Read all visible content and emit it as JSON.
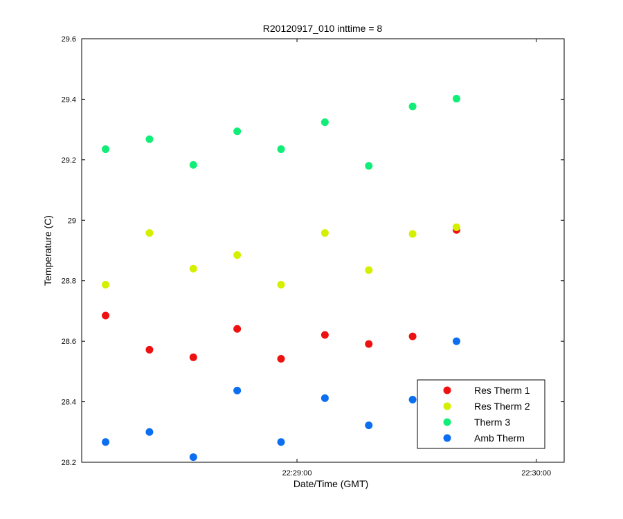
{
  "chart_data": {
    "type": "scatter",
    "title": "R20120917_010 inttime = 8",
    "xlabel": "Date/Time (GMT)",
    "ylabel": "Temperature (C)",
    "ylim": [
      28.2,
      29.6
    ],
    "yticks": [
      28.2,
      28.4,
      28.6,
      28.8,
      29,
      29.2,
      29.4,
      29.6
    ],
    "ytick_labels": [
      "28.2",
      "28.4",
      "28.6",
      "28.8",
      "29",
      "29.2",
      "29.4",
      "29.6"
    ],
    "xlim": [
      "22:28:06",
      "22:30:07"
    ],
    "xticks": [
      "22:29:00",
      "22:30:00"
    ],
    "xtick_labels": [
      "22:29:00",
      "22:30:00"
    ],
    "grid": false,
    "legend_position": "bottom-right",
    "x": [
      "22:28:12",
      "22:28:23",
      "22:28:34",
      "22:28:45",
      "22:28:56",
      "22:29:07",
      "22:29:18",
      "22:29:29",
      "22:29:40"
    ],
    "series": [
      {
        "name": "Res Therm 1",
        "color": "#ee1111",
        "values": [
          28.685,
          28.572,
          28.547,
          28.641,
          28.542,
          28.621,
          28.591,
          28.616,
          28.968
        ]
      },
      {
        "name": "Res Therm 2",
        "color": "#d4f000",
        "values": [
          28.787,
          28.958,
          28.84,
          28.885,
          28.787,
          28.958,
          28.835,
          28.955,
          28.977
        ]
      },
      {
        "name": "Therm 3",
        "color": "#11ee77",
        "values": [
          29.235,
          29.268,
          29.183,
          29.294,
          29.235,
          29.324,
          29.18,
          29.376,
          29.402
        ]
      },
      {
        "name": "Amb Therm",
        "color": "#0c6ef0",
        "values": [
          28.267,
          28.3,
          28.217,
          28.437,
          28.267,
          28.412,
          28.322,
          28.407,
          28.6
        ]
      }
    ]
  }
}
